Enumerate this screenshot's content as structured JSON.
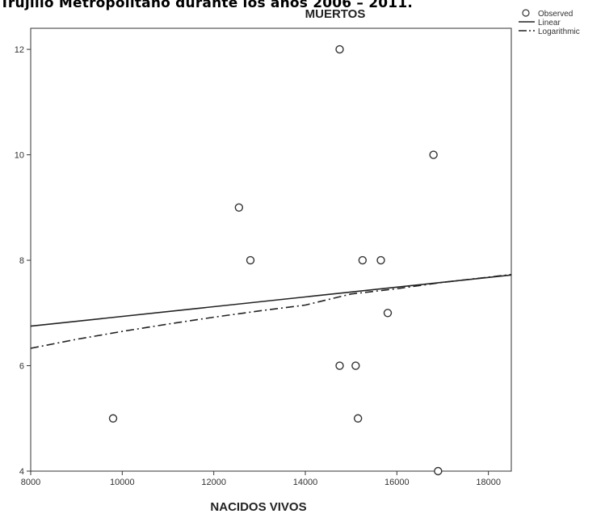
{
  "page": {
    "caption": "Trujillo Metropolitano durante los años 2006 – 2011."
  },
  "chart_data": {
    "type": "scatter",
    "title": "MUERTOS",
    "xlabel": "NACIDOS VIVOS",
    "ylabel": "",
    "xlim": [
      8000,
      18500
    ],
    "ylim": [
      4,
      12.4
    ],
    "xticks": [
      8000,
      10000,
      12000,
      14000,
      16000,
      18000
    ],
    "yticks": [
      4,
      6,
      8,
      10,
      12
    ],
    "grid": false,
    "legend_position": "right",
    "series": [
      {
        "name": "Observed",
        "kind": "points",
        "points": [
          [
            9800,
            5
          ],
          [
            12550,
            9
          ],
          [
            12800,
            8
          ],
          [
            14750,
            12
          ],
          [
            14750,
            6
          ],
          [
            15100,
            6
          ],
          [
            15150,
            5
          ],
          [
            15250,
            8
          ],
          [
            15650,
            8
          ],
          [
            15800,
            7
          ],
          [
            16800,
            10
          ],
          [
            16900,
            4
          ]
        ]
      },
      {
        "name": "Linear",
        "kind": "line",
        "style": "solid",
        "points": [
          [
            8000,
            6.75
          ],
          [
            18500,
            7.72
          ]
        ]
      },
      {
        "name": "Logarithmic",
        "kind": "line",
        "style": "dashdot",
        "points": [
          [
            8000,
            6.33
          ],
          [
            9000,
            6.5
          ],
          [
            10000,
            6.65
          ],
          [
            11000,
            6.79
          ],
          [
            12000,
            6.92
          ],
          [
            13000,
            7.04
          ],
          [
            14000,
            7.15
          ],
          [
            15000,
            7.36
          ],
          [
            16000,
            7.46
          ],
          [
            17000,
            7.58
          ],
          [
            18500,
            7.73
          ]
        ]
      }
    ]
  }
}
